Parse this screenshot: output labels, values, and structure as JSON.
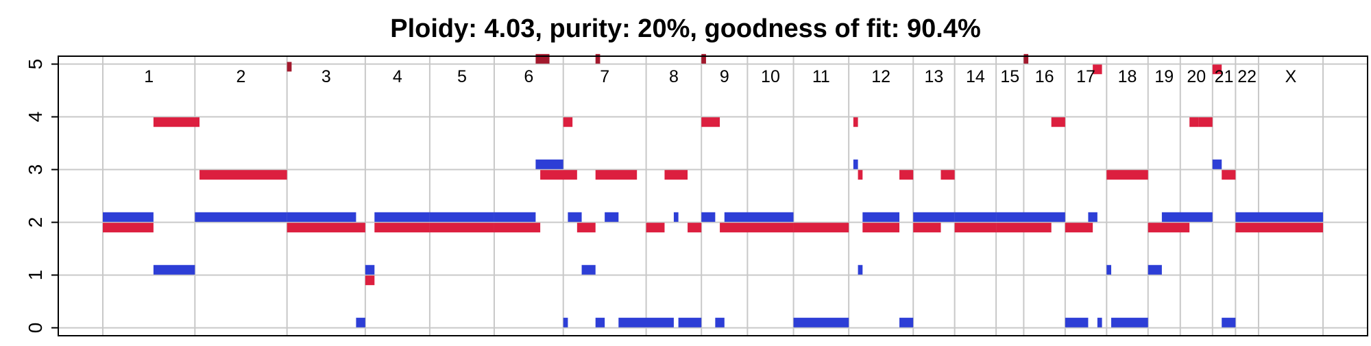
{
  "chart_data": {
    "type": "segment",
    "title": "Ploidy: 4.03, purity: 20%, goodness of fit: 90.4%",
    "xlabel": "",
    "ylabel": "",
    "ylim": [
      -0.15,
      5.15
    ],
    "yticks": [
      "0",
      "1",
      "2",
      "3",
      "4",
      "5"
    ],
    "xlim": [
      0,
      2.0
    ],
    "grid": true,
    "legend": "none",
    "colors": {
      "major_copy": "#dc1f3f",
      "minor_copy": "#2d3ed6",
      "overflow": "#a2192d",
      "grid": "#c8c8c8",
      "axis": "#000000"
    },
    "chromosomes": [
      {
        "name": "1",
        "start": 0.0,
        "end": 0.2
      },
      {
        "name": "2",
        "start": 0.2,
        "end": 0.4
      },
      {
        "name": "3",
        "start": 0.4,
        "end": 0.57
      },
      {
        "name": "4",
        "start": 0.57,
        "end": 0.71
      },
      {
        "name": "5",
        "start": 0.71,
        "end": 0.85
      },
      {
        "name": "6",
        "start": 0.85,
        "end": 1.0
      },
      {
        "name": "7",
        "start": 1.0,
        "end": 1.18
      },
      {
        "name": "8",
        "start": 1.18,
        "end": 1.3
      },
      {
        "name": "9",
        "start": 1.3,
        "end": 1.4
      },
      {
        "name": "10",
        "start": 1.4,
        "end": 1.5
      },
      {
        "name": "11",
        "start": 1.5,
        "end": 1.62
      },
      {
        "name": "12",
        "start": 1.62,
        "end": 1.76
      },
      {
        "name": "13",
        "start": 1.76,
        "end": 1.85
      },
      {
        "name": "14",
        "start": 1.85,
        "end": 1.94
      },
      {
        "name": "15",
        "start": 1.94,
        "end": 2.0
      },
      {
        "name": "16",
        "start": 2.0,
        "end": 2.09
      },
      {
        "name": "17",
        "start": 2.09,
        "end": 2.18
      },
      {
        "name": "18",
        "start": 2.18,
        "end": 2.27
      },
      {
        "name": "19",
        "start": 2.27,
        "end": 2.34
      },
      {
        "name": "20",
        "start": 2.34,
        "end": 2.41
      },
      {
        "name": "21",
        "start": 2.41,
        "end": 2.46
      },
      {
        "name": "22",
        "start": 2.46,
        "end": 2.51
      },
      {
        "name": "X",
        "start": 2.51,
        "end": 2.65
      }
    ],
    "series": [
      {
        "name": "",
        "color": "#dc1f3f",
        "segments": [
          {
            "x0": 0.0,
            "x1": 0.11,
            "y": 1.9
          },
          {
            "x0": 0.11,
            "x1": 0.21,
            "y": 3.9
          },
          {
            "x0": 0.21,
            "x1": 0.4,
            "y": 2.9
          },
          {
            "x0": 0.4,
            "x1": 0.57,
            "y": 1.9
          },
          {
            "x0": 0.57,
            "x1": 0.59,
            "y": 0.9
          },
          {
            "x0": 0.59,
            "x1": 0.71,
            "y": 1.9
          },
          {
            "x0": 0.71,
            "x1": 0.85,
            "y": 1.9
          },
          {
            "x0": 0.85,
            "x1": 0.95,
            "y": 1.9
          },
          {
            "x0": 0.95,
            "x1": 1.03,
            "y": 2.9
          },
          {
            "x0": 1.0,
            "x1": 1.02,
            "y": 3.9
          },
          {
            "x0": 1.03,
            "x1": 1.07,
            "y": 1.9
          },
          {
            "x0": 1.07,
            "x1": 1.16,
            "y": 2.9
          },
          {
            "x0": 1.18,
            "x1": 1.22,
            "y": 1.9
          },
          {
            "x0": 1.22,
            "x1": 1.27,
            "y": 2.9
          },
          {
            "x0": 1.27,
            "x1": 1.3,
            "y": 1.9
          },
          {
            "x0": 1.3,
            "x1": 1.34,
            "y": 3.9
          },
          {
            "x0": 1.34,
            "x1": 1.5,
            "y": 1.9
          },
          {
            "x0": 1.5,
            "x1": 1.62,
            "y": 1.9
          },
          {
            "x0": 1.63,
            "x1": 1.64,
            "y": 3.9
          },
          {
            "x0": 1.64,
            "x1": 1.65,
            "y": 2.9
          },
          {
            "x0": 1.65,
            "x1": 1.73,
            "y": 1.9
          },
          {
            "x0": 1.73,
            "x1": 1.76,
            "y": 2.9
          },
          {
            "x0": 1.76,
            "x1": 1.82,
            "y": 1.9
          },
          {
            "x0": 1.82,
            "x1": 1.85,
            "y": 2.9
          },
          {
            "x0": 1.85,
            "x1": 1.94,
            "y": 1.9
          },
          {
            "x0": 1.94,
            "x1": 2.06,
            "y": 1.9
          },
          {
            "x0": 2.06,
            "x1": 2.09,
            "y": 3.9
          },
          {
            "x0": 2.09,
            "x1": 2.15,
            "y": 1.9
          },
          {
            "x0": 2.15,
            "x1": 2.17,
            "y": 4.9
          },
          {
            "x0": 2.18,
            "x1": 2.27,
            "y": 2.9
          },
          {
            "x0": 2.27,
            "x1": 2.36,
            "y": 1.9
          },
          {
            "x0": 2.36,
            "x1": 2.38,
            "y": 3.9
          },
          {
            "x0": 2.38,
            "x1": 2.41,
            "y": 3.9
          },
          {
            "x0": 2.41,
            "x1": 2.43,
            "y": 4.9
          },
          {
            "x0": 2.43,
            "x1": 2.46,
            "y": 2.9
          },
          {
            "x0": 2.46,
            "x1": 2.65,
            "y": 1.9
          }
        ]
      },
      {
        "name": "",
        "color": "#2d3ed6",
        "segments": [
          {
            "x0": 0.0,
            "x1": 0.11,
            "y": 2.1
          },
          {
            "x0": 0.11,
            "x1": 0.2,
            "y": 1.1
          },
          {
            "x0": 0.2,
            "x1": 0.4,
            "y": 2.1
          },
          {
            "x0": 0.4,
            "x1": 0.55,
            "y": 2.1
          },
          {
            "x0": 0.55,
            "x1": 0.57,
            "y": 0.1
          },
          {
            "x0": 0.57,
            "x1": 0.59,
            "y": 1.1
          },
          {
            "x0": 0.59,
            "x1": 0.71,
            "y": 2.1
          },
          {
            "x0": 0.71,
            "x1": 0.85,
            "y": 2.1
          },
          {
            "x0": 0.85,
            "x1": 0.94,
            "y": 2.1
          },
          {
            "x0": 0.94,
            "x1": 1.0,
            "y": 3.1
          },
          {
            "x0": 1.0,
            "x1": 1.01,
            "y": 0.1
          },
          {
            "x0": 1.01,
            "x1": 1.04,
            "y": 2.1
          },
          {
            "x0": 1.04,
            "x1": 1.07,
            "y": 1.1
          },
          {
            "x0": 1.07,
            "x1": 1.09,
            "y": 0.1
          },
          {
            "x0": 1.09,
            "x1": 1.12,
            "y": 2.1
          },
          {
            "x0": 1.12,
            "x1": 1.24,
            "y": 0.1
          },
          {
            "x0": 1.24,
            "x1": 1.25,
            "y": 2.1
          },
          {
            "x0": 1.25,
            "x1": 1.3,
            "y": 0.1
          },
          {
            "x0": 1.3,
            "x1": 1.33,
            "y": 2.1
          },
          {
            "x0": 1.33,
            "x1": 1.35,
            "y": 0.1
          },
          {
            "x0": 1.35,
            "x1": 1.5,
            "y": 2.1
          },
          {
            "x0": 1.5,
            "x1": 1.62,
            "y": 0.1
          },
          {
            "x0": 1.63,
            "x1": 1.64,
            "y": 3.1
          },
          {
            "x0": 1.64,
            "x1": 1.65,
            "y": 1.1
          },
          {
            "x0": 1.65,
            "x1": 1.73,
            "y": 2.1
          },
          {
            "x0": 1.73,
            "x1": 1.76,
            "y": 0.1
          },
          {
            "x0": 1.76,
            "x1": 1.85,
            "y": 2.1
          },
          {
            "x0": 1.85,
            "x1": 1.94,
            "y": 2.1
          },
          {
            "x0": 1.94,
            "x1": 2.09,
            "y": 2.1
          },
          {
            "x0": 2.09,
            "x1": 2.14,
            "y": 0.1
          },
          {
            "x0": 2.14,
            "x1": 2.16,
            "y": 2.1
          },
          {
            "x0": 2.16,
            "x1": 2.17,
            "y": 0.1
          },
          {
            "x0": 2.18,
            "x1": 2.19,
            "y": 1.1
          },
          {
            "x0": 2.19,
            "x1": 2.27,
            "y": 0.1
          },
          {
            "x0": 2.27,
            "x1": 2.3,
            "y": 1.1
          },
          {
            "x0": 2.3,
            "x1": 2.41,
            "y": 2.1
          },
          {
            "x0": 2.41,
            "x1": 2.43,
            "y": 3.1
          },
          {
            "x0": 2.43,
            "x1": 2.46,
            "y": 0.1
          },
          {
            "x0": 2.46,
            "x1": 2.65,
            "y": 2.1
          }
        ]
      },
      {
        "name": "",
        "color": "#a2192d",
        "segments": [
          {
            "x0": 0.94,
            "x1": 0.97,
            "y": 5.1
          },
          {
            "x0": 1.07,
            "x1": 1.08,
            "y": 5.1
          },
          {
            "x0": 1.3,
            "x1": 1.31,
            "y": 5.1
          },
          {
            "x0": 2.0,
            "x1": 2.01,
            "y": 5.1
          },
          {
            "x0": 0.4,
            "x1": 0.41,
            "y": 4.95
          }
        ]
      }
    ]
  }
}
